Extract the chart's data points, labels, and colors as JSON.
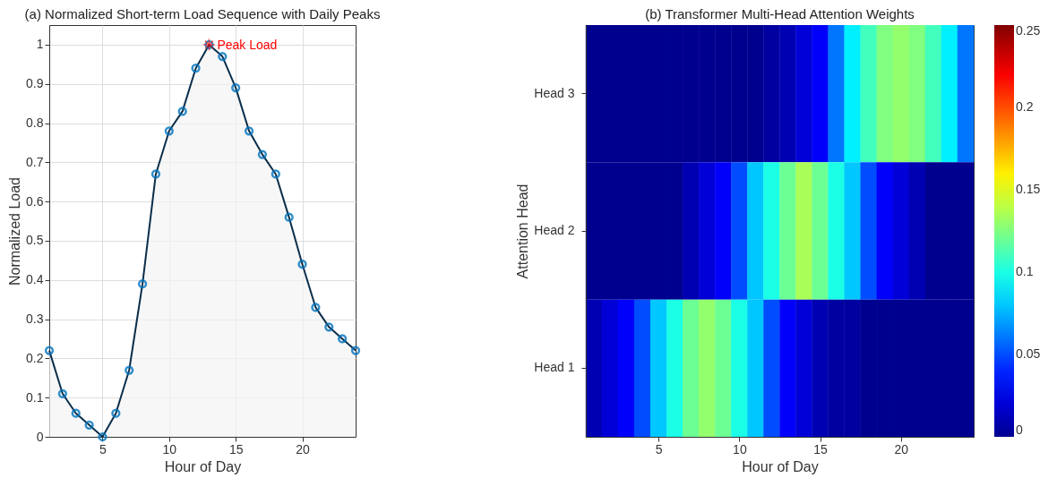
{
  "chart_data": [
    {
      "type": "area",
      "title": "(a) Normalized Short-term Load Sequence with Daily Peaks",
      "xlabel": "Hour of Day",
      "ylabel": "Normalized Load",
      "x": [
        1,
        2,
        3,
        4,
        5,
        6,
        7,
        8,
        9,
        10,
        11,
        12,
        13,
        14,
        15,
        16,
        17,
        18,
        19,
        20,
        21,
        22,
        23,
        24
      ],
      "series": [
        {
          "type": "area",
          "color": "#0b2e4a",
          "values": [
            0.22,
            0.11,
            0.06,
            0.03,
            0,
            0.06,
            0.17,
            0.39,
            0.67,
            0.78,
            0.83,
            0.94,
            1,
            0.97,
            0.89,
            0.78,
            0.72,
            0.67,
            0.56,
            0.44,
            0.33,
            0.28,
            0.25,
            0.22
          ]
        },
        {
          "type": "scatter",
          "color": "#0072bd",
          "marker": "circle",
          "values": [
            0.22,
            0.11,
            0.06,
            0.03,
            0,
            0.06,
            0.17,
            0.39,
            0.67,
            0.78,
            0.83,
            0.94,
            1,
            0.97,
            0.89,
            0.78,
            0.72,
            0.67,
            0.56,
            0.44,
            0.33,
            0.28,
            0.25,
            0.22
          ]
        }
      ],
      "xlim": [
        1,
        24
      ],
      "xticks": [
        5,
        10,
        15,
        20
      ],
      "ylim": [
        0,
        1.05
      ],
      "yticks": [
        0,
        0.1,
        0.2,
        0.3,
        0.4,
        0.5,
        0.6,
        0.7,
        0.8,
        0.9,
        1
      ],
      "grid": true,
      "annotations": [
        {
          "text": "Peak Load",
          "x": 13,
          "y": 1
        }
      ]
    },
    {
      "type": "heatmap",
      "title": "(b) Transformer Multi-Head Attention Weights",
      "xlabel": "Hour of Day",
      "ylabel": "Attention Head",
      "x": [
        1,
        2,
        3,
        4,
        5,
        6,
        7,
        8,
        9,
        10,
        11,
        12,
        13,
        14,
        15,
        16,
        17,
        18,
        19,
        20,
        21,
        22,
        23,
        24
      ],
      "xlim": [
        0.5,
        24.5
      ],
      "xticks": [
        5,
        10,
        15,
        20
      ],
      "y_categories": [
        "Head 3",
        "Head 2",
        "Head 1"
      ],
      "cells": [
        [
          0,
          0,
          0,
          0,
          0,
          0,
          0,
          0,
          0,
          0,
          0,
          0.005,
          0.01,
          0.02,
          0.03,
          0.06,
          0.09,
          0.11,
          0.125,
          0.13,
          0.125,
          0.11,
          0.09,
          0.06
        ],
        [
          0,
          0,
          0,
          0,
          0,
          0,
          0.01,
          0.02,
          0.03,
          0.05,
          0.08,
          0.1,
          0.12,
          0.135,
          0.12,
          0.1,
          0.08,
          0.05,
          0.03,
          0.02,
          0.01,
          0,
          0,
          0
        ],
        [
          0.01,
          0.02,
          0.03,
          0.05,
          0.08,
          0.1,
          0.12,
          0.13,
          0.12,
          0.1,
          0.08,
          0.05,
          0.03,
          0.02,
          0.01,
          0.005,
          0.005,
          0,
          0,
          0,
          0,
          0,
          0,
          0
        ]
      ],
      "clim": [
        0,
        0.25
      ],
      "cticks": [
        0,
        0.05,
        0.1,
        0.15,
        0.2,
        0.25
      ]
    }
  ]
}
